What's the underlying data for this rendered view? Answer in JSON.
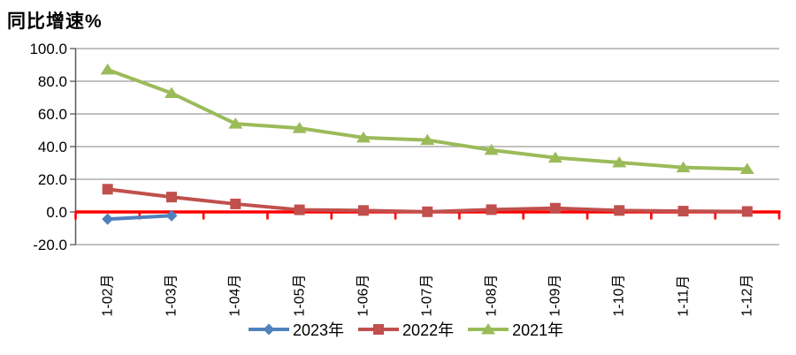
{
  "title": "同比增速%",
  "chart_data": {
    "type": "line",
    "title": "同比增速%",
    "ylabel": "同比增速%",
    "xlabel": "",
    "ylim": [
      -20,
      100
    ],
    "ytick_interval": 20,
    "ytick_labels": [
      "100.0",
      "80.0",
      "60.0",
      "40.0",
      "20.0",
      "0.0",
      "-20.0"
    ],
    "categories": [
      "1-02月",
      "1-03月",
      "1-04月",
      "1-05月",
      "1-06月",
      "1-07月",
      "1-08月",
      "1-09月",
      "1-10月",
      "1-11月",
      "1-12月"
    ],
    "grid": true,
    "legend_position": "bottom",
    "gridline_color": "#9C9C9C",
    "axis_color": "#595959",
    "zero_line_color": "#FF0000",
    "series": [
      {
        "name": "2023年",
        "marker": "diamond",
        "color": "#4F81BD",
        "values": [
          -4.4,
          -2.3,
          null,
          null,
          null,
          null,
          null,
          null,
          null,
          null,
          null
        ]
      },
      {
        "name": "2022年",
        "marker": "square",
        "color": "#C0504D",
        "values": [
          13.9,
          9.1,
          4.9,
          1.3,
          0.9,
          0.1,
          1.4,
          2.3,
          0.9,
          0.5,
          0.3
        ]
      },
      {
        "name": "2021年",
        "marker": "triangle",
        "color": "#9BBB59",
        "values": [
          87.1,
          72.7,
          54.0,
          51.3,
          45.5,
          44.0,
          37.9,
          33.2,
          30.3,
          27.2,
          26.2
        ]
      }
    ]
  }
}
